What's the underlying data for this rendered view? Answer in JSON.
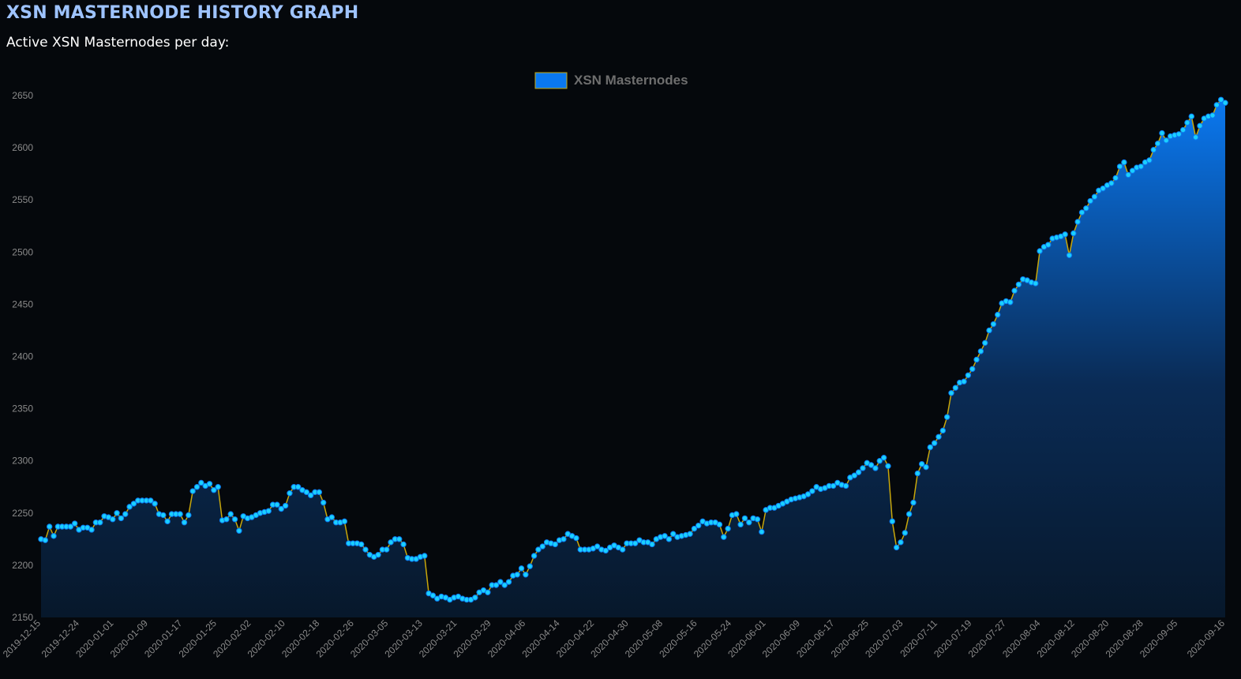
{
  "page": {
    "title": "XSN MASTERNODE HISTORY GRAPH",
    "subtitle": "Active XSN Masternodes per day:"
  },
  "chart_data": {
    "type": "area",
    "legend": {
      "label": "XSN Masternodes",
      "placement": "top-center",
      "color": "#0a78f0"
    },
    "colors": {
      "line": "#c9a70a",
      "point_fill": "#1ad0ff",
      "point_stroke": "#0a78f0",
      "fill_top": "#0a78f0",
      "fill_bottom": "#07182b",
      "tick_text": "#8a8a8a"
    },
    "ylim": [
      2150,
      2650
    ],
    "y_ticks": [
      2650,
      2600,
      2550,
      2500,
      2450,
      2400,
      2350,
      2300,
      2250,
      2200,
      2150
    ],
    "grid": false,
    "x_start": "2019-12-15",
    "x_end": "2020-09-16",
    "x_ticks": [
      "2019-12-15",
      "2019-12-24",
      "2020-01-01",
      "2020-01-09",
      "2020-01-17",
      "2020-01-25",
      "2020-02-02",
      "2020-02-10",
      "2020-02-18",
      "2020-02-26",
      "2020-03-05",
      "2020-03-13",
      "2020-03-21",
      "2020-03-29",
      "2020-04-06",
      "2020-04-14",
      "2020-04-22",
      "2020-04-30",
      "2020-05-08",
      "2020-05-16",
      "2020-05-24",
      "2020-06-01",
      "2020-06-09",
      "2020-06-17",
      "2020-06-25",
      "2020-07-03",
      "2020-07-11",
      "2020-07-19",
      "2020-07-27",
      "2020-08-04",
      "2020-08-12",
      "2020-08-20",
      "2020-08-28",
      "2020-09-05",
      "2020-09-16"
    ],
    "values": [
      2225,
      2224,
      2237,
      2228,
      2237,
      2237,
      2237,
      2237,
      2240,
      2234,
      2236,
      2236,
      2234,
      2241,
      2241,
      2247,
      2246,
      2244,
      2250,
      2245,
      2249,
      2256,
      2259,
      2262,
      2262,
      2262,
      2262,
      2259,
      2249,
      2248,
      2242,
      2249,
      2249,
      2249,
      2241,
      2248,
      2271,
      2275,
      2279,
      2276,
      2278,
      2272,
      2275,
      2243,
      2244,
      2249,
      2244,
      2233,
      2247,
      2245,
      2246,
      2248,
      2250,
      2251,
      2252,
      2258,
      2258,
      2254,
      2257,
      2269,
      2275,
      2275,
      2272,
      2270,
      2267,
      2270,
      2270,
      2260,
      2244,
      2246,
      2241,
      2241,
      2242,
      2221,
      2221,
      2221,
      2220,
      2215,
      2210,
      2208,
      2210,
      2215,
      2215,
      2222,
      2225,
      2225,
      2220,
      2207,
      2206,
      2206,
      2208,
      2209,
      2173,
      2171,
      2168,
      2170,
      2169,
      2167,
      2169,
      2170,
      2168,
      2167,
      2167,
      2169,
      2174,
      2176,
      2174,
      2181,
      2181,
      2184,
      2181,
      2184,
      2190,
      2191,
      2197,
      2191,
      2199,
      2209,
      2215,
      2218,
      2222,
      2221,
      2220,
      2224,
      2225,
      2230,
      2228,
      2226,
      2215,
      2215,
      2215,
      2216,
      2218,
      2215,
      2214,
      2217,
      2219,
      2217,
      2215,
      2221,
      2221,
      2221,
      2224,
      2222,
      2222,
      2220,
      2225,
      2227,
      2228,
      2225,
      2230,
      2227,
      2228,
      2229,
      2230,
      2235,
      2238,
      2242,
      2240,
      2241,
      2241,
      2239,
      2227,
      2235,
      2248,
      2249,
      2239,
      2245,
      2241,
      2245,
      2244,
      2232,
      2253,
      2255,
      2255,
      2257,
      2259,
      2261,
      2263,
      2264,
      2265,
      2266,
      2268,
      2271,
      2275,
      2273,
      2274,
      2276,
      2276,
      2279,
      2277,
      2276,
      2284,
      2286,
      2289,
      2293,
      2298,
      2296,
      2293,
      2300,
      2303,
      2295,
      2242,
      2217,
      2222,
      2231,
      2249,
      2260,
      2288,
      2297,
      2294,
      2313,
      2317,
      2323,
      2329,
      2342,
      2365,
      2370,
      2375,
      2376,
      2382,
      2388,
      2397,
      2405,
      2413,
      2425,
      2431,
      2440,
      2451,
      2453,
      2452,
      2463,
      2469,
      2474,
      2473,
      2471,
      2470,
      2501,
      2505,
      2507,
      2513,
      2514,
      2515,
      2517,
      2497,
      2518,
      2529,
      2538,
      2542,
      2549,
      2553,
      2559,
      2561,
      2564,
      2566,
      2571,
      2582,
      2586,
      2574,
      2578,
      2581,
      2582,
      2586,
      2588,
      2598,
      2604,
      2614,
      2607,
      2611,
      2612,
      2613,
      2617,
      2624,
      2630,
      2610,
      2621,
      2628,
      2630,
      2631,
      2641,
      2646,
      2643
    ]
  }
}
